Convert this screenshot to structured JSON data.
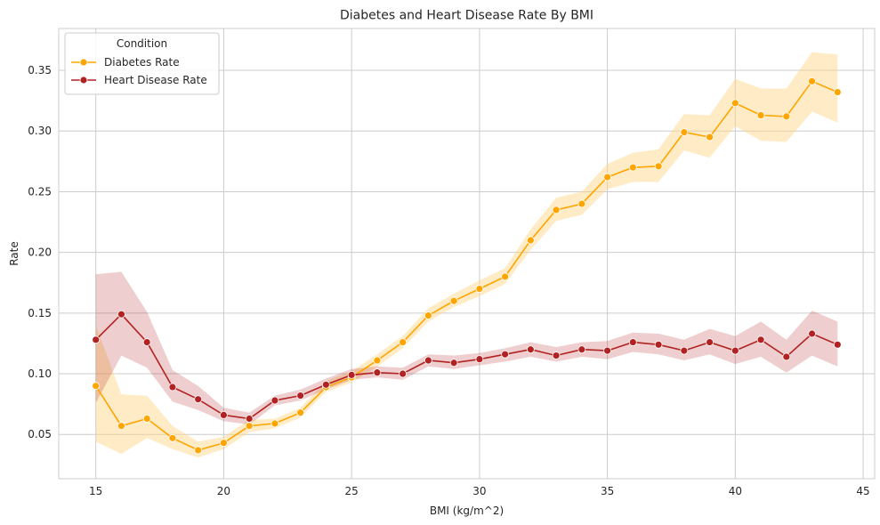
{
  "chart_data": {
    "type": "line",
    "title": "Diabetes and Heart Disease Rate By BMI",
    "xlabel": "BMI (kg/m^2)",
    "ylabel": "Rate",
    "xlim": [
      13.55,
      45.45
    ],
    "ylim": [
      0.0135,
      0.3845
    ],
    "xticks": [
      15,
      20,
      25,
      30,
      35,
      40,
      45
    ],
    "yticks": [
      0.05,
      0.1,
      0.15,
      0.2,
      0.25,
      0.3,
      0.35
    ],
    "grid": true,
    "legend": {
      "title": "Condition",
      "placement": "top-left"
    },
    "x": [
      15,
      16,
      17,
      18,
      19,
      20,
      21,
      22,
      23,
      24,
      25,
      26,
      27,
      28,
      29,
      30,
      31,
      32,
      33,
      34,
      35,
      36,
      37,
      38,
      39,
      40,
      41,
      42,
      43,
      44
    ],
    "series": [
      {
        "name": "Diabetes Rate",
        "color": "#FFA500",
        "values": [
          0.09,
          0.057,
          0.063,
          0.047,
          0.037,
          0.043,
          0.057,
          0.059,
          0.068,
          0.089,
          0.097,
          0.111,
          0.126,
          0.148,
          0.16,
          0.17,
          0.18,
          0.21,
          0.235,
          0.24,
          0.262,
          0.27,
          0.271,
          0.299,
          0.295,
          0.323,
          0.313,
          0.312,
          0.341,
          0.332
        ],
        "lower": [
          0.044,
          0.034,
          0.047,
          0.038,
          0.031,
          0.038,
          0.052,
          0.055,
          0.064,
          0.085,
          0.093,
          0.106,
          0.121,
          0.143,
          0.155,
          0.164,
          0.174,
          0.202,
          0.226,
          0.231,
          0.252,
          0.258,
          0.258,
          0.284,
          0.278,
          0.304,
          0.292,
          0.291,
          0.316,
          0.307
        ],
        "upper": [
          0.14,
          0.083,
          0.082,
          0.057,
          0.044,
          0.048,
          0.062,
          0.063,
          0.072,
          0.094,
          0.102,
          0.116,
          0.131,
          0.154,
          0.166,
          0.177,
          0.187,
          0.219,
          0.245,
          0.25,
          0.273,
          0.282,
          0.285,
          0.314,
          0.313,
          0.343,
          0.335,
          0.335,
          0.365,
          0.363
        ]
      },
      {
        "name": "Heart Disease Rate",
        "color": "#B22222",
        "values": [
          0.128,
          0.149,
          0.126,
          0.089,
          0.079,
          0.066,
          0.063,
          0.078,
          0.082,
          0.091,
          0.099,
          0.101,
          0.1,
          0.111,
          0.109,
          0.112,
          0.116,
          0.12,
          0.115,
          0.12,
          0.119,
          0.126,
          0.124,
          0.119,
          0.126,
          0.119,
          0.128,
          0.114,
          0.133,
          0.124
        ],
        "lower": [
          0.076,
          0.115,
          0.105,
          0.077,
          0.07,
          0.061,
          0.058,
          0.074,
          0.078,
          0.087,
          0.095,
          0.097,
          0.095,
          0.106,
          0.104,
          0.107,
          0.11,
          0.114,
          0.11,
          0.114,
          0.112,
          0.118,
          0.116,
          0.111,
          0.116,
          0.108,
          0.114,
          0.101,
          0.115,
          0.106
        ],
        "upper": [
          0.182,
          0.184,
          0.151,
          0.103,
          0.09,
          0.072,
          0.068,
          0.082,
          0.087,
          0.096,
          0.104,
          0.106,
          0.105,
          0.116,
          0.115,
          0.117,
          0.121,
          0.126,
          0.122,
          0.126,
          0.127,
          0.134,
          0.133,
          0.128,
          0.137,
          0.131,
          0.143,
          0.128,
          0.152,
          0.143
        ]
      }
    ]
  }
}
